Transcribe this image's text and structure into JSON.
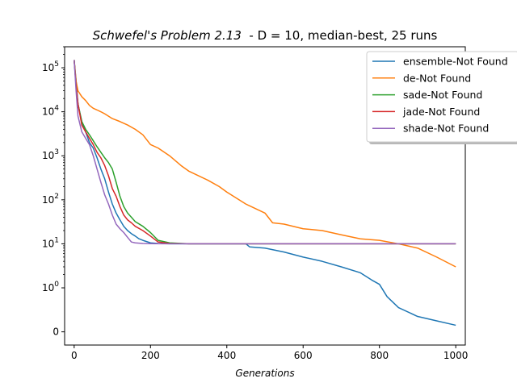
{
  "chart_data": {
    "type": "line",
    "title": {
      "italic_part": "Schwefel's Problem 2.13",
      "rest": "  - D = 10, median-best, 25 runs"
    },
    "xlabel": "Generations",
    "ylabel": "",
    "xlim": [
      -25,
      1025
    ],
    "xticks": [
      0,
      200,
      400,
      600,
      800,
      1000
    ],
    "ylim": [
      -0.3,
      300000
    ],
    "yscale": "symlog",
    "yticks": [
      {
        "value": 0,
        "label": "0"
      },
      {
        "value": 1,
        "label": "10^0"
      },
      {
        "value": 10,
        "label": "10^1"
      },
      {
        "value": 100,
        "label": "10^2"
      },
      {
        "value": 1000,
        "label": "10^3"
      },
      {
        "value": 10000,
        "label": "10^4"
      },
      {
        "value": 100000,
        "label": "10^5"
      }
    ],
    "grid": false,
    "legend_position": "top-right",
    "series": [
      {
        "name": "ensemble-Not Found",
        "color": "#1f77b4",
        "x": [
          0,
          5,
          10,
          20,
          30,
          40,
          50,
          60,
          70,
          80,
          90,
          100,
          110,
          120,
          130,
          140,
          150,
          160,
          170,
          180,
          200,
          220,
          250,
          300,
          350,
          400,
          450,
          460,
          500,
          550,
          600,
          650,
          700,
          750,
          780,
          800,
          820,
          850,
          900,
          950,
          1000
        ],
        "y": [
          150000,
          50000,
          15000,
          6000,
          3500,
          2000,
          1500,
          900,
          500,
          300,
          150,
          80,
          50,
          35,
          25,
          20,
          17,
          15,
          13,
          12,
          10.5,
          10.2,
          10,
          10,
          10,
          10,
          10,
          8.5,
          8,
          6.5,
          5,
          4,
          3,
          2.2,
          1.5,
          1.2,
          0.8,
          0.55,
          0.35,
          0.25,
          0.15
        ]
      },
      {
        "name": "de-Not Found",
        "color": "#ff7f0e",
        "x": [
          0,
          5,
          10,
          20,
          30,
          40,
          50,
          60,
          70,
          80,
          100,
          120,
          140,
          160,
          180,
          200,
          220,
          250,
          280,
          300,
          350,
          380,
          400,
          450,
          500,
          520,
          550,
          600,
          650,
          700,
          750,
          800,
          850,
          900,
          950,
          1000
        ],
        "y": [
          150000,
          50000,
          30000,
          22000,
          18000,
          14000,
          12000,
          11000,
          10000,
          9000,
          7000,
          6000,
          5000,
          4000,
          3000,
          1800,
          1500,
          1000,
          600,
          450,
          280,
          200,
          150,
          80,
          50,
          30,
          28,
          22,
          20,
          16,
          13,
          12,
          10,
          8,
          5,
          3
        ]
      },
      {
        "name": "sade-Not Found",
        "color": "#2ca02c",
        "x": [
          0,
          5,
          10,
          20,
          30,
          40,
          50,
          60,
          70,
          80,
          90,
          100,
          110,
          120,
          130,
          140,
          150,
          160,
          180,
          200,
          220,
          250,
          300,
          400,
          500,
          600,
          700,
          800,
          900,
          1000
        ],
        "y": [
          150000,
          40000,
          15000,
          6000,
          4000,
          3000,
          2200,
          1600,
          1200,
          900,
          700,
          500,
          250,
          120,
          70,
          50,
          40,
          32,
          25,
          18,
          12,
          10.5,
          10,
          10,
          10,
          10,
          10,
          10,
          10,
          10
        ]
      },
      {
        "name": "jade-Not Found",
        "color": "#d62728",
        "x": [
          0,
          5,
          10,
          20,
          30,
          40,
          50,
          60,
          70,
          80,
          90,
          100,
          110,
          120,
          130,
          140,
          150,
          160,
          180,
          200,
          220,
          250,
          300,
          400,
          500,
          600,
          700,
          800,
          900,
          1000
        ],
        "y": [
          150000,
          40000,
          15000,
          5000,
          3500,
          2500,
          1800,
          1200,
          900,
          600,
          350,
          180,
          120,
          70,
          45,
          35,
          30,
          25,
          20,
          15,
          11,
          10.2,
          10,
          10,
          10,
          10,
          10,
          10,
          10,
          10
        ]
      },
      {
        "name": "shade-Not Found",
        "color": "#9467bd",
        "x": [
          0,
          5,
          10,
          20,
          30,
          40,
          50,
          60,
          70,
          80,
          90,
          100,
          110,
          120,
          130,
          140,
          150,
          160,
          180,
          200,
          250,
          300,
          400,
          500,
          600,
          700,
          800,
          900,
          1000
        ],
        "y": [
          150000,
          30000,
          8000,
          3500,
          2500,
          1800,
          1000,
          500,
          250,
          130,
          80,
          45,
          28,
          22,
          18,
          14,
          11,
          10.5,
          10.2,
          10.1,
          10,
          10,
          10,
          10,
          10,
          10,
          10,
          10,
          10
        ]
      }
    ]
  }
}
